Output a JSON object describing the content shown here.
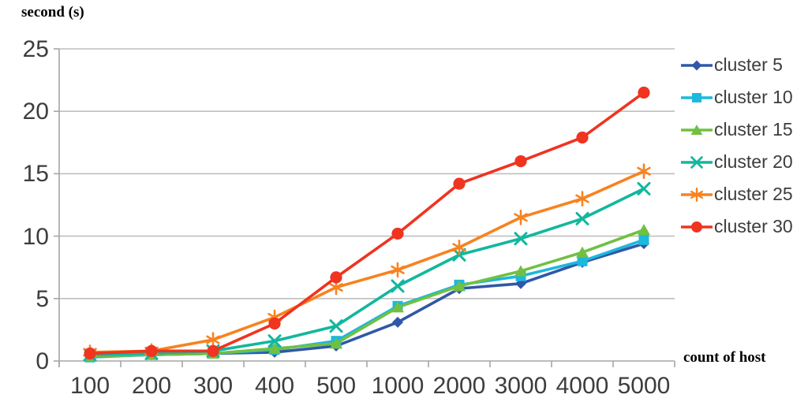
{
  "chart_data": {
    "type": "line",
    "title": "",
    "y_axis_title": "second (s)",
    "x_axis_title": "count of host",
    "categories": [
      "100",
      "200",
      "300",
      "400",
      "500",
      "1000",
      "2000",
      "3000",
      "4000",
      "5000"
    ],
    "y_ticks": [
      0,
      5,
      10,
      15,
      20,
      25
    ],
    "ylim": [
      0,
      25
    ],
    "grid": true,
    "legend_position": "right",
    "series": [
      {
        "name": "cluster 5",
        "marker": "diamond",
        "color": "#3058A6",
        "values": [
          0.4,
          0.5,
          0.6,
          0.7,
          1.2,
          3.1,
          5.8,
          6.2,
          7.9,
          9.4
        ]
      },
      {
        "name": "cluster 10",
        "marker": "square",
        "color": "#1CB8DE",
        "values": [
          0.3,
          0.5,
          0.6,
          0.9,
          1.6,
          4.4,
          6.1,
          6.8,
          8.0,
          9.7
        ]
      },
      {
        "name": "cluster 15",
        "marker": "triangle",
        "color": "#70C042",
        "values": [
          0.4,
          0.5,
          0.6,
          1.0,
          1.4,
          4.3,
          6.0,
          7.2,
          8.7,
          10.5
        ]
      },
      {
        "name": "cluster 20",
        "marker": "x",
        "color": "#12B79E",
        "values": [
          0.5,
          0.6,
          0.8,
          1.6,
          2.8,
          6.0,
          8.5,
          9.8,
          11.4,
          13.8
        ]
      },
      {
        "name": "cluster 25",
        "marker": "asterisk",
        "color": "#F8821F",
        "values": [
          0.7,
          0.8,
          1.7,
          3.5,
          5.9,
          7.3,
          9.1,
          11.5,
          13.0,
          15.2
        ]
      },
      {
        "name": "cluster 30",
        "marker": "circle",
        "color": "#EF3420",
        "values": [
          0.6,
          0.8,
          0.8,
          3.0,
          6.7,
          10.2,
          14.2,
          16.0,
          17.9,
          21.5
        ]
      }
    ]
  },
  "colors": {
    "grid": "#BFBFBF",
    "axis": "#A6A6A6",
    "tick_text": "#3d3d3d"
  }
}
